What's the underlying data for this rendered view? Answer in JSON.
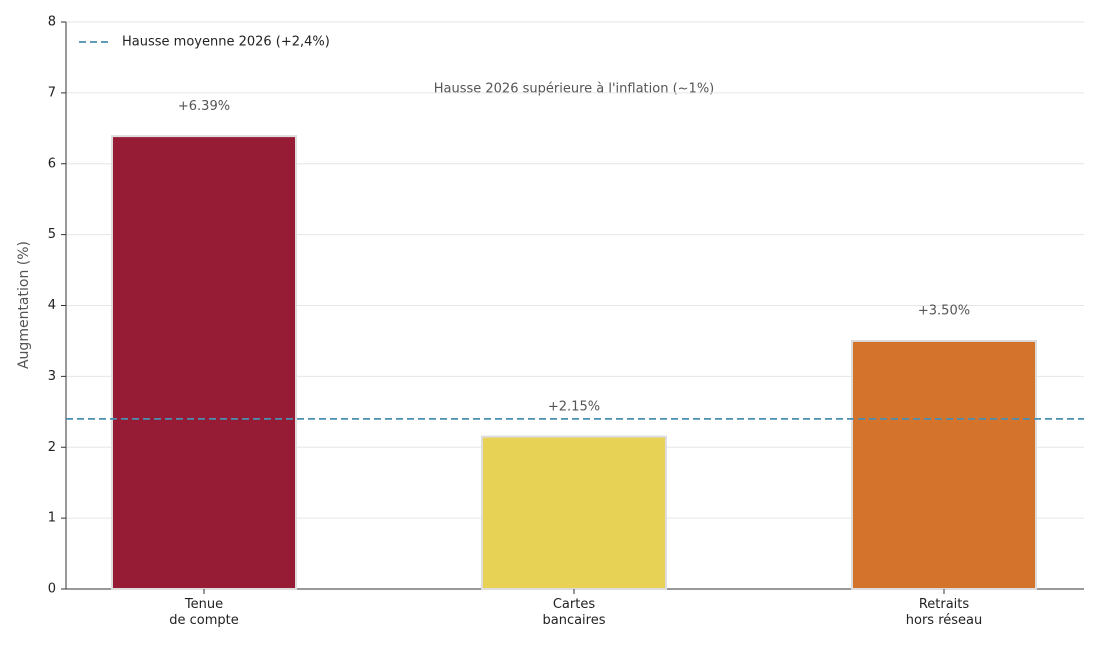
{
  "chart_data": {
    "type": "bar",
    "categories": [
      "Tenue\nde compte",
      "Cartes\nbancaires",
      "Retraits\nhors réseau"
    ],
    "values": [
      6.39,
      2.15,
      3.5
    ],
    "value_labels": [
      "+6.39%",
      "+2.15%",
      "+3.50%"
    ],
    "colors": [
      "#961c35",
      "#e8d255",
      "#d4732b"
    ],
    "ylabel": "Augmentation (%)",
    "ylim": [
      0,
      8
    ],
    "yticks": [
      0,
      1,
      2,
      3,
      4,
      5,
      6,
      7,
      8
    ],
    "grid": true,
    "reference_line": {
      "value": 2.4,
      "name": "Hausse moyenne 2026 (+2,4%)",
      "color": "#4a8fb0",
      "style": "dashed"
    },
    "legend": "upper left",
    "annotation": "Hausse 2026 supérieure à l'inflation (~1%)"
  }
}
